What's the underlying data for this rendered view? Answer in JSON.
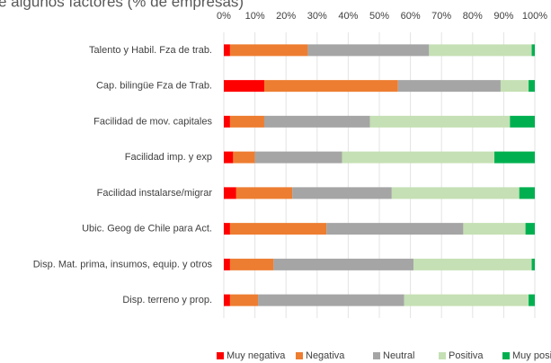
{
  "chart_data": {
    "type": "stacked-bar-horizontal",
    "title": "e algunos factores (% de empresas)",
    "categories": [
      "Talento y Habil. Fza de trab.",
      "Cap. bilingüe Fza de Trab.",
      "Facilidad de mov. capitales",
      "Facilidad imp. y exp",
      "Facilidad instalarse/migrar",
      "Ubic. Geog de Chile para Act.",
      "Disp. Mat. prima, insumos, equip. y otros",
      "Disp. terreno y prop."
    ],
    "series": [
      {
        "name": "Muy negativa",
        "color": "#ff0000",
        "values": [
          2,
          13,
          2,
          3,
          4,
          2,
          2,
          2
        ]
      },
      {
        "name": "Negativa",
        "color": "#ed7d31",
        "values": [
          25,
          43,
          11,
          7,
          18,
          31,
          14,
          9
        ]
      },
      {
        "name": "Neutral",
        "color": "#a5a5a5",
        "values": [
          39,
          33,
          34,
          28,
          32,
          44,
          45,
          47
        ]
      },
      {
        "name": "Positiva",
        "color": "#c5e0b4",
        "values": [
          33,
          9,
          45,
          49,
          41,
          20,
          38,
          40
        ]
      },
      {
        "name": "Muy positiva",
        "color": "#00b050",
        "values": [
          1,
          2,
          8,
          13,
          5,
          3,
          1,
          2
        ]
      }
    ],
    "xlim": [
      0,
      100
    ],
    "xticks": [
      {
        "value": 0,
        "label": "0%"
      },
      {
        "value": 10,
        "label": "10%"
      },
      {
        "value": 20,
        "label": "20%"
      },
      {
        "value": 30,
        "label": "30%"
      },
      {
        "value": 40,
        "label": "40%"
      },
      {
        "value": 50,
        "label": "50%"
      },
      {
        "value": 60,
        "label": "60%"
      },
      {
        "value": 70,
        "label": "70%"
      },
      {
        "value": 80,
        "label": "80%"
      },
      {
        "value": 90,
        "label": "90%"
      },
      {
        "value": 100,
        "label": "100%"
      }
    ],
    "grid": true,
    "legend": "bottom"
  }
}
